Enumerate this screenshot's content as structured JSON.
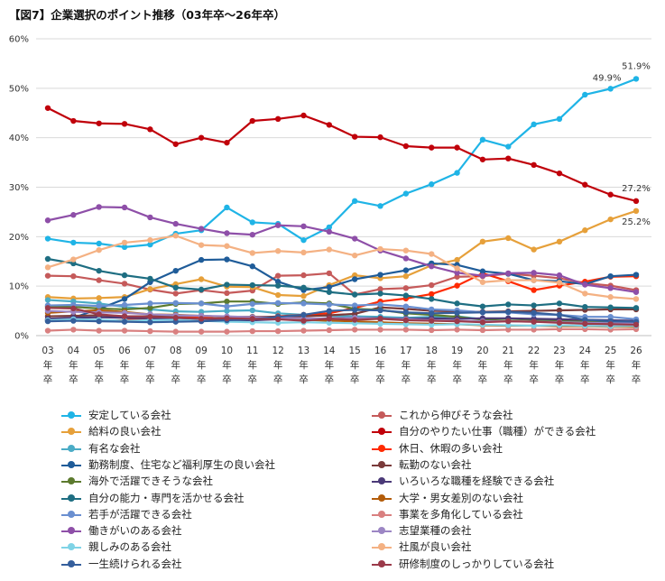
{
  "chart_data": {
    "type": "line",
    "title": "【図7】企業選択のポイント推移（03年卒～26年卒）",
    "xlabel": "",
    "ylabel": "",
    "ylim": [
      0,
      60
    ],
    "yticks": [
      "0%",
      "10%",
      "20%",
      "30%",
      "40%",
      "50%",
      "60%"
    ],
    "grid": true,
    "legend_position": "bottom",
    "x": [
      "03\n年\n卒",
      "04\n年\n卒",
      "05\n年\n卒",
      "06\n年\n卒",
      "07\n年\n卒",
      "08\n年\n卒",
      "09\n年\n卒",
      "10\n年\n卒",
      "11\n年\n卒",
      "12\n年\n卒",
      "13\n年\n卒",
      "14\n年\n卒",
      "15\n年\n卒",
      "16\n年\n卒",
      "17\n年\n卒",
      "18\n年\n卒",
      "19\n年\n卒",
      "20\n年\n卒",
      "21\n年\n卒",
      "22\n年\n卒",
      "23\n年\n卒",
      "24\n年\n卒",
      "25\n年\n卒",
      "26\n年\n卒"
    ],
    "series": [
      {
        "name": "安定している会社",
        "color": "#1fb4e6",
        "values": [
          19.6,
          18.8,
          18.6,
          17.9,
          18.4,
          20.6,
          21.3,
          25.9,
          22.9,
          22.6,
          19.3,
          21.9,
          27.2,
          26.2,
          28.7,
          30.6,
          32.9,
          39.6,
          38.2,
          42.7,
          43.8,
          48.7,
          49.9,
          51.9
        ]
      },
      {
        "name": "これから伸びそうな会社",
        "color": "#c55a5a",
        "values": [
          12.1,
          12.0,
          11.2,
          10.5,
          9.3,
          8.5,
          9.2,
          8.6,
          9.1,
          12.1,
          12.2,
          12.6,
          8.3,
          9.4,
          9.6,
          10.2,
          11.9,
          12.0,
          12.5,
          12.1,
          11.6,
          10.6,
          10.1,
          9.2
        ]
      },
      {
        "name": "給料の良い会社",
        "color": "#e6a03a",
        "values": [
          7.8,
          7.5,
          7.6,
          7.8,
          9.4,
          10.4,
          11.4,
          9.9,
          9.8,
          8.2,
          8.0,
          10.2,
          12.2,
          11.6,
          12.0,
          14.2,
          15.3,
          19.0,
          19.7,
          17.4,
          19.0,
          21.3,
          23.5,
          25.2
        ]
      },
      {
        "name": "自分のやりたい仕事（職種）ができる会社",
        "color": "#c0000a",
        "values": [
          46.0,
          43.4,
          42.9,
          42.8,
          41.7,
          38.7,
          40.0,
          39.0,
          43.4,
          43.8,
          44.5,
          42.6,
          40.2,
          40.1,
          38.3,
          38.0,
          38.0,
          35.6,
          35.8,
          34.5,
          32.8,
          30.5,
          28.5,
          27.2
        ]
      },
      {
        "name": "有名な会社",
        "color": "#4bacc6",
        "values": [
          7.2,
          6.9,
          6.5,
          5.8,
          5.3,
          4.9,
          4.8,
          5.0,
          5.1,
          4.5,
          4.2,
          4.0,
          3.9,
          3.8,
          3.6,
          3.8,
          3.9,
          3.3,
          3.5,
          3.2,
          3.0,
          3.1,
          2.8,
          2.7
        ]
      },
      {
        "name": "休日、休暇の多い会社",
        "color": "#ff2a00",
        "values": [
          3.1,
          3.2,
          3.0,
          3.1,
          3.6,
          3.9,
          3.8,
          3.2,
          3.5,
          3.9,
          4.2,
          4.5,
          5.6,
          6.9,
          7.5,
          8.4,
          10.1,
          12.6,
          11.0,
          9.2,
          10.1,
          10.9,
          11.9,
          12.0
        ]
      },
      {
        "name": "勤務制度、住宅など福利厚生の良い会社",
        "color": "#1f5c99",
        "values": [
          3.0,
          3.6,
          5.4,
          7.4,
          10.8,
          13.1,
          15.3,
          15.4,
          14.0,
          10.9,
          9.2,
          9.8,
          11.4,
          12.3,
          13.2,
          14.6,
          14.3,
          13.0,
          12.5,
          11.2,
          11.0,
          10.4,
          12.0,
          12.3
        ]
      },
      {
        "name": "転勤のない会社",
        "color": "#7a3a3a",
        "values": [
          3.9,
          4.0,
          4.1,
          3.9,
          3.9,
          4.0,
          4.0,
          3.8,
          3.8,
          3.8,
          3.9,
          4.1,
          4.4,
          5.7,
          5.4,
          5.0,
          4.9,
          4.8,
          4.9,
          5.0,
          5.1,
          5.2,
          5.3,
          5.3
        ]
      },
      {
        "name": "海外で活躍できそうな会社",
        "color": "#5c7a2e",
        "values": [
          5.9,
          5.8,
          5.5,
          5.3,
          5.6,
          6.4,
          6.5,
          6.9,
          6.9,
          6.4,
          6.7,
          6.5,
          5.4,
          5.2,
          4.5,
          4.2,
          3.8,
          3.2,
          3.4,
          3.2,
          3.1,
          2.9,
          2.8,
          2.7
        ]
      },
      {
        "name": "いろいろな職種を経験できる会社",
        "color": "#4b3a78",
        "values": [
          3.4,
          3.6,
          3.7,
          3.6,
          3.5,
          3.4,
          3.2,
          3.0,
          3.1,
          3.3,
          3.4,
          3.5,
          3.6,
          3.5,
          3.4,
          3.5,
          3.4,
          3.5,
          3.5,
          3.4,
          3.3,
          3.2,
          3.1,
          3.0
        ]
      },
      {
        "name": "自分の能力・専門を活かせる会社",
        "color": "#1e6e82",
        "values": [
          15.5,
          14.6,
          13.1,
          12.2,
          11.5,
          9.7,
          9.3,
          10.3,
          10.2,
          10.1,
          9.7,
          8.8,
          8.3,
          8.5,
          8.1,
          7.4,
          6.5,
          5.9,
          6.3,
          6.1,
          6.5,
          5.8,
          5.7,
          5.6
        ]
      },
      {
        "name": "大学・男女差別のない会社",
        "color": "#b35c0a",
        "values": [
          4.6,
          4.9,
          5.1,
          4.8,
          4.3,
          4.2,
          4.0,
          3.8,
          3.6,
          3.5,
          3.2,
          3.0,
          2.9,
          2.7,
          2.5,
          2.4,
          2.3,
          2.1,
          2.0,
          2.0,
          1.9,
          1.9,
          1.8,
          1.8
        ]
      },
      {
        "name": "若手が活躍できる会社",
        "color": "#6a8fd0",
        "values": [
          6.1,
          6.2,
          6.0,
          6.2,
          6.5,
          6.6,
          6.5,
          5.9,
          6.4,
          6.6,
          6.5,
          6.3,
          6.1,
          6.3,
          5.9,
          5.3,
          5.1,
          4.7,
          4.7,
          4.3,
          4.2,
          3.8,
          3.8,
          3.3
        ]
      },
      {
        "name": "事業を多角化している会社",
        "color": "#d98080",
        "values": [
          1.0,
          1.2,
          1.0,
          1.0,
          0.9,
          0.8,
          0.8,
          0.8,
          0.9,
          0.9,
          1.0,
          1.1,
          1.2,
          1.2,
          1.2,
          1.1,
          1.2,
          1.1,
          1.2,
          1.2,
          1.3,
          1.3,
          1.2,
          1.3
        ]
      },
      {
        "name": "働きがいのある会社",
        "color": "#8e4fa8",
        "values": [
          23.3,
          24.4,
          26.0,
          25.9,
          23.9,
          22.6,
          21.6,
          20.7,
          20.4,
          22.3,
          22.1,
          21.0,
          19.6,
          17.2,
          15.6,
          14.0,
          12.7,
          12.1,
          12.6,
          12.7,
          12.2,
          10.3,
          9.6,
          8.8
        ]
      },
      {
        "name": "志望業種の会社",
        "color": "#9c86c4",
        "values": [
          5.0,
          4.8,
          4.7,
          4.6,
          4.3,
          4.1,
          4.0,
          3.9,
          3.7,
          3.6,
          3.5,
          3.4,
          3.6,
          3.4,
          3.3,
          3.1,
          3.0,
          2.9,
          2.9,
          2.8,
          2.7,
          2.6,
          2.5,
          2.5
        ]
      },
      {
        "name": "親しみのある会社",
        "color": "#7fd3e6",
        "values": [
          3.1,
          3.3,
          3.2,
          3.0,
          3.1,
          3.2,
          3.0,
          2.8,
          2.7,
          2.6,
          2.7,
          2.6,
          2.5,
          2.4,
          2.3,
          2.2,
          2.3,
          2.2,
          2.1,
          2.0,
          2.1,
          2.0,
          1.9,
          2.0
        ]
      },
      {
        "name": "社風が良い会社",
        "color": "#f4b183",
        "values": [
          13.8,
          15.4,
          17.3,
          18.8,
          19.3,
          20.2,
          18.3,
          18.1,
          16.7,
          17.1,
          16.8,
          17.4,
          16.2,
          17.5,
          17.2,
          16.5,
          13.6,
          10.8,
          11.2,
          11.2,
          10.7,
          8.5,
          7.8,
          7.4
        ]
      },
      {
        "name": "一生続けられる会社",
        "color": "#355f9c",
        "values": [
          2.9,
          3.0,
          2.9,
          2.8,
          2.7,
          2.8,
          2.9,
          3.1,
          3.3,
          3.8,
          4.2,
          5.0,
          5.2,
          5.1,
          4.7,
          4.5,
          4.6,
          4.7,
          4.8,
          4.6,
          4.2,
          3.2,
          2.9,
          2.8
        ]
      },
      {
        "name": "研修制度のしっかりしている会社",
        "color": "#9b3a4a",
        "values": [
          5.6,
          5.5,
          4.3,
          3.9,
          3.8,
          3.6,
          3.4,
          3.5,
          3.4,
          3.3,
          3.0,
          3.4,
          3.2,
          3.4,
          3.1,
          3.0,
          2.9,
          2.7,
          2.9,
          2.8,
          2.6,
          2.4,
          2.3,
          2.2
        ]
      }
    ],
    "annotations": [
      {
        "series": "安定している会社",
        "index": 23,
        "text": "51.9%"
      },
      {
        "series": "安定している会社",
        "index": 22,
        "text": "49.9%"
      },
      {
        "series": "自分のやりたい仕事（職種）ができる会社",
        "index": 23,
        "text": "27.2%"
      },
      {
        "series": "給料の良い会社",
        "index": 23,
        "text": "25.2%"
      }
    ]
  }
}
